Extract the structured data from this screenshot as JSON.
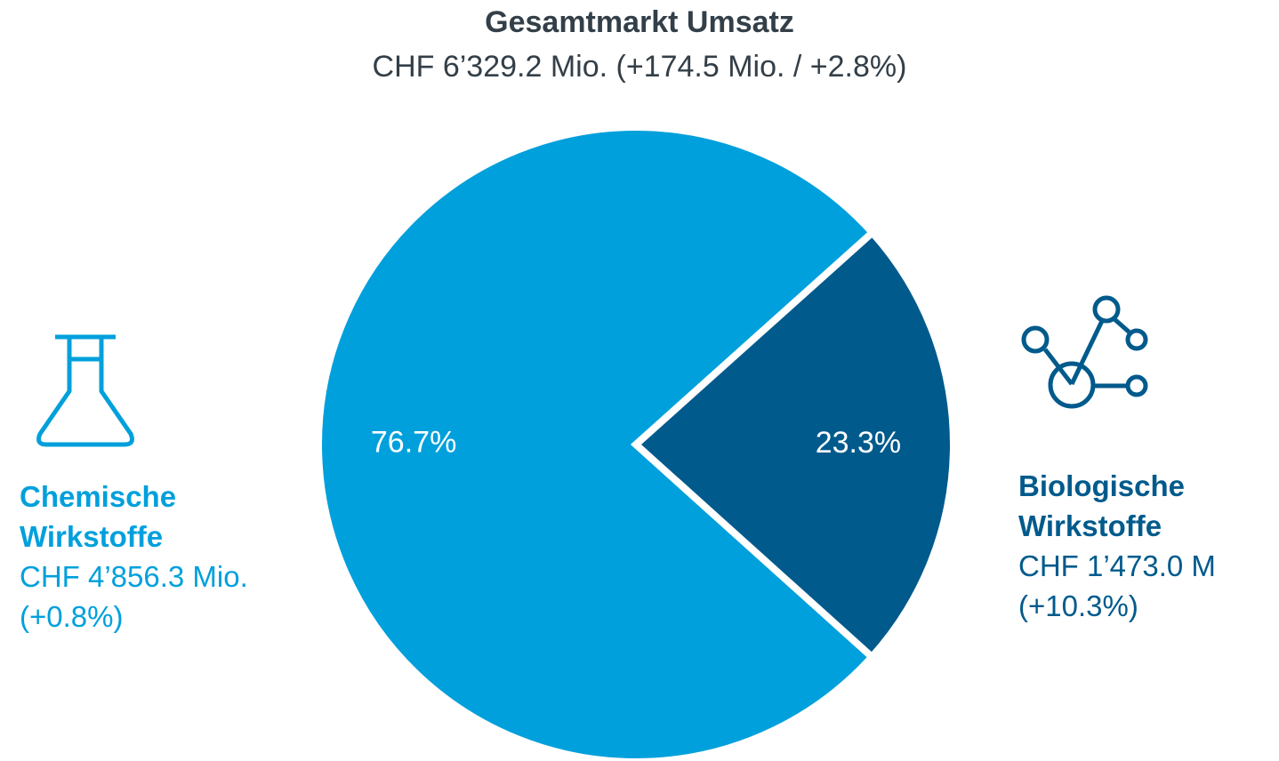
{
  "chart_data": {
    "type": "pie",
    "title": "Gesamtmarkt Umsatz",
    "subtitle": "CHF 6’329.2 Mio. (+174.5 Mio. / +2.8%)",
    "categories": [
      "Chemische Wirkstoffe",
      "Biologische Wirkstoffe"
    ],
    "values": [
      76.7,
      23.3
    ],
    "value_labels": [
      "76.7%",
      "23.3%"
    ],
    "colors": [
      "#00a0dc",
      "#005a8c"
    ],
    "annotations": [
      {
        "amount": "CHF 4’856.3 Mio.",
        "change": "(+0.8%)"
      },
      {
        "amount": "CHF 1’473.0 M",
        "change": "(+10.3%)"
      }
    ]
  }
}
